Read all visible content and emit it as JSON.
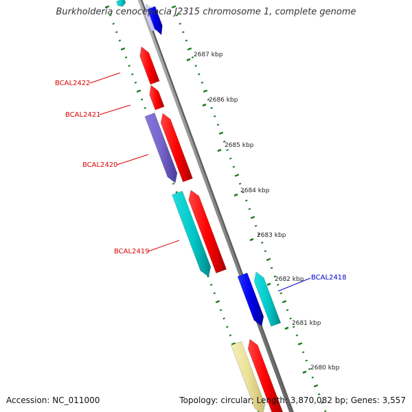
{
  "title": "Burkholderia cenocepacia J2315 chromosome 1, complete genome",
  "footer": {
    "accession": "Accession: NC_011000",
    "summary": "Topology: circular; Length: 3,870,082 bp; Genes: 3,557"
  },
  "colors": {
    "backbone": "#999999",
    "tick": "#1a7a1a",
    "forward_gene": "#ff0000",
    "reverse_gene": "#0000ee",
    "label_red": "#dd0000",
    "label_blue": "#0000cc",
    "cyan_gene": "#00cccc",
    "purple_gene": "#7766cc",
    "yellow_gene": "#eee3a0",
    "pale_gene": "#c8c8f4"
  },
  "kbp_labels": [
    "2687 kbp",
    "2686 kbp",
    "2685 kbp",
    "2684 kbp",
    "2683 kbp",
    "2682 kbp",
    "2681 kbp",
    "2680 kbp"
  ],
  "gene_labels": [
    {
      "text": "BCAL2422",
      "color": "red"
    },
    {
      "text": "BCAL2421",
      "color": "red"
    },
    {
      "text": "BCAL2420",
      "color": "red"
    },
    {
      "text": "BCAL2419",
      "color": "red"
    },
    {
      "text": "BCAL2418",
      "color": "blue"
    }
  ]
}
